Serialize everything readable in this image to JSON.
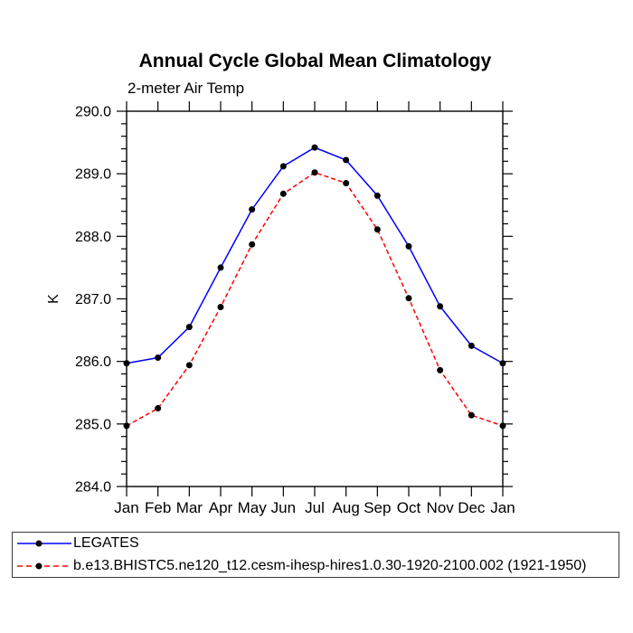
{
  "title": "Annual Cycle Global Mean Climatology",
  "subtitle": "2-meter Air Temp",
  "chart_data": {
    "type": "line",
    "categories": [
      "Jan",
      "Feb",
      "Mar",
      "Apr",
      "May",
      "Jun",
      "Jul",
      "Aug",
      "Sep",
      "Oct",
      "Nov",
      "Dec",
      "Jan"
    ],
    "xlabel": "",
    "ylabel": "K",
    "ylim": [
      284.0,
      290.0
    ],
    "ytick_interval_major": 1.0,
    "ytick_interval_minor": 0.2,
    "yticks": [
      {
        "v": 284,
        "label": "284.0"
      },
      {
        "v": 285,
        "label": "285.0"
      },
      {
        "v": 286,
        "label": "286.0"
      },
      {
        "v": 287,
        "label": "287.0"
      },
      {
        "v": 288,
        "label": "288.0"
      },
      {
        "v": 289,
        "label": "289.0"
      },
      {
        "v": 290,
        "label": "290.0"
      }
    ],
    "grid": false,
    "legend_position": "boxed-below-plot",
    "marker_color": "#000000",
    "series": [
      {
        "name": "LEGATES",
        "color": "#0000ff",
        "line_style": "solid",
        "marker": "filled-circle",
        "values": [
          285.97,
          286.06,
          286.55,
          287.5,
          288.43,
          289.12,
          289.42,
          289.22,
          288.65,
          287.84,
          286.88,
          286.25,
          285.97
        ]
      },
      {
        "name": "b.e13.BHISTC5.ne120_t12.cesm-ihesp-hires1.0.30-1920-2100.002 (1921-1950)",
        "color": "#ff0000",
        "line_style": "dashed",
        "marker": "filled-circle",
        "values": [
          284.97,
          285.25,
          285.94,
          286.87,
          287.87,
          288.68,
          289.02,
          288.85,
          288.11,
          287.01,
          285.86,
          285.14,
          284.97
        ]
      }
    ]
  }
}
